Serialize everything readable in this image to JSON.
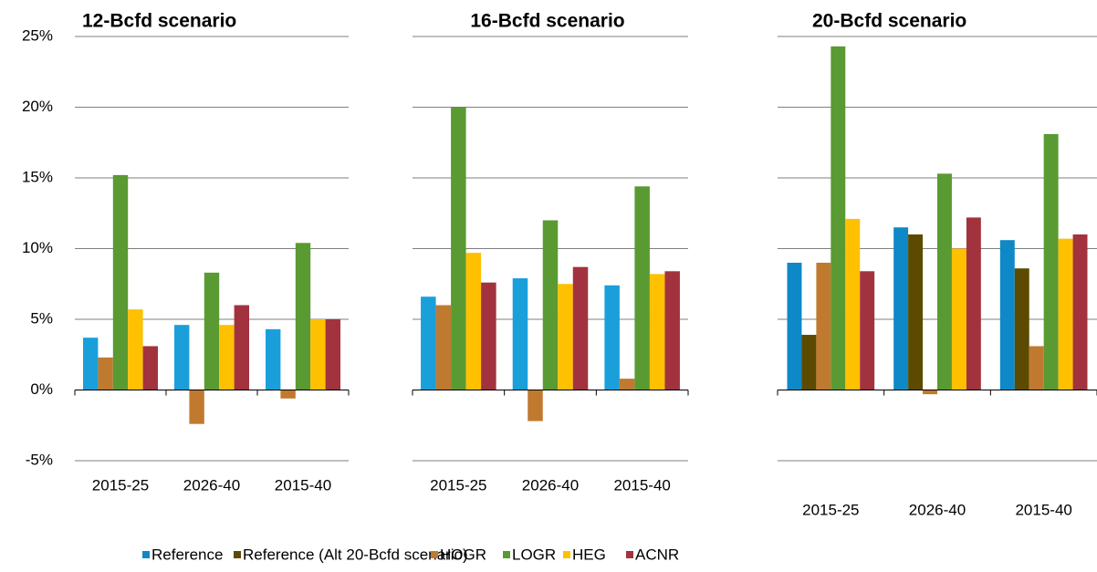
{
  "chart_data": [
    {
      "type": "bar",
      "title": "12-Bcfd scenario",
      "categories": [
        "2015-25",
        "2026-40",
        "2015-40"
      ],
      "series": [
        {
          "name": "Reference",
          "color": "#1a9fdb",
          "values": [
            3.7,
            4.6,
            4.3
          ]
        },
        {
          "name": "HOGR",
          "color": "#c07a30",
          "values": [
            2.3,
            -2.4,
            -0.6
          ]
        },
        {
          "name": "LOGR",
          "color": "#5a9a32",
          "values": [
            15.2,
            8.3,
            10.4
          ]
        },
        {
          "name": "HEG",
          "color": "#ffc000",
          "values": [
            5.7,
            4.6,
            5.0
          ]
        },
        {
          "name": "ACNR",
          "color": "#a3323f",
          "values": [
            3.1,
            6.0,
            5.0
          ]
        }
      ],
      "ylim": [
        -5,
        25
      ],
      "yticks": [
        {
          "value": -5,
          "label": "-5%"
        },
        {
          "value": 0,
          "label": "0%"
        },
        {
          "value": 5,
          "label": "5%"
        },
        {
          "value": 10,
          "label": "10%"
        },
        {
          "value": 15,
          "label": "15%"
        },
        {
          "value": 20,
          "label": "20%"
        },
        {
          "value": 25,
          "label": "25%"
        }
      ],
      "ytick_labels": true,
      "grid": true
    },
    {
      "type": "bar",
      "title": "16-Bcfd scenario",
      "categories": [
        "2015-25",
        "2026-40",
        "2015-40"
      ],
      "series": [
        {
          "name": "Reference",
          "color": "#1a9fdb",
          "values": [
            6.6,
            7.9,
            7.4
          ]
        },
        {
          "name": "HOGR",
          "color": "#c07a30",
          "values": [
            6.0,
            -2.2,
            0.8
          ]
        },
        {
          "name": "LOGR",
          "color": "#5a9a32",
          "values": [
            20.0,
            12.0,
            14.4
          ]
        },
        {
          "name": "HEG",
          "color": "#ffc000",
          "values": [
            9.7,
            7.5,
            8.2
          ]
        },
        {
          "name": "ACNR",
          "color": "#a3323f",
          "values": [
            7.6,
            8.7,
            8.4
          ]
        }
      ],
      "ylim": [
        -5,
        25
      ],
      "yticks": [
        -5,
        0,
        5,
        10,
        15,
        20,
        25
      ],
      "ytick_labels": false,
      "grid": true
    },
    {
      "type": "bar",
      "title": "20-Bcfd scenario",
      "categories": [
        "2015-25",
        "2026-40",
        "2015-40"
      ],
      "series": [
        {
          "name": "Reference",
          "color": "#0e88c6",
          "values": [
            9.0,
            11.5,
            10.6
          ]
        },
        {
          "name": "Reference (Alt 20-Bcfd scenario)",
          "color": "#5c4a00",
          "values": [
            3.9,
            11.0,
            8.6
          ]
        },
        {
          "name": "HOGR",
          "color": "#c07a30",
          "values": [
            9.0,
            -0.3,
            3.1
          ]
        },
        {
          "name": "LOGR",
          "color": "#5a9a32",
          "values": [
            24.3,
            15.3,
            18.1
          ]
        },
        {
          "name": "HEG",
          "color": "#ffc000",
          "values": [
            12.1,
            10.0,
            10.7
          ]
        },
        {
          "name": "ACNR",
          "color": "#a3323f",
          "values": [
            8.4,
            12.2,
            11.0
          ]
        }
      ],
      "ylim": [
        -5,
        25
      ],
      "yticks": [
        -5,
        0,
        5,
        10,
        15,
        20,
        25
      ],
      "ytick_labels": false,
      "grid": true
    }
  ]
}
